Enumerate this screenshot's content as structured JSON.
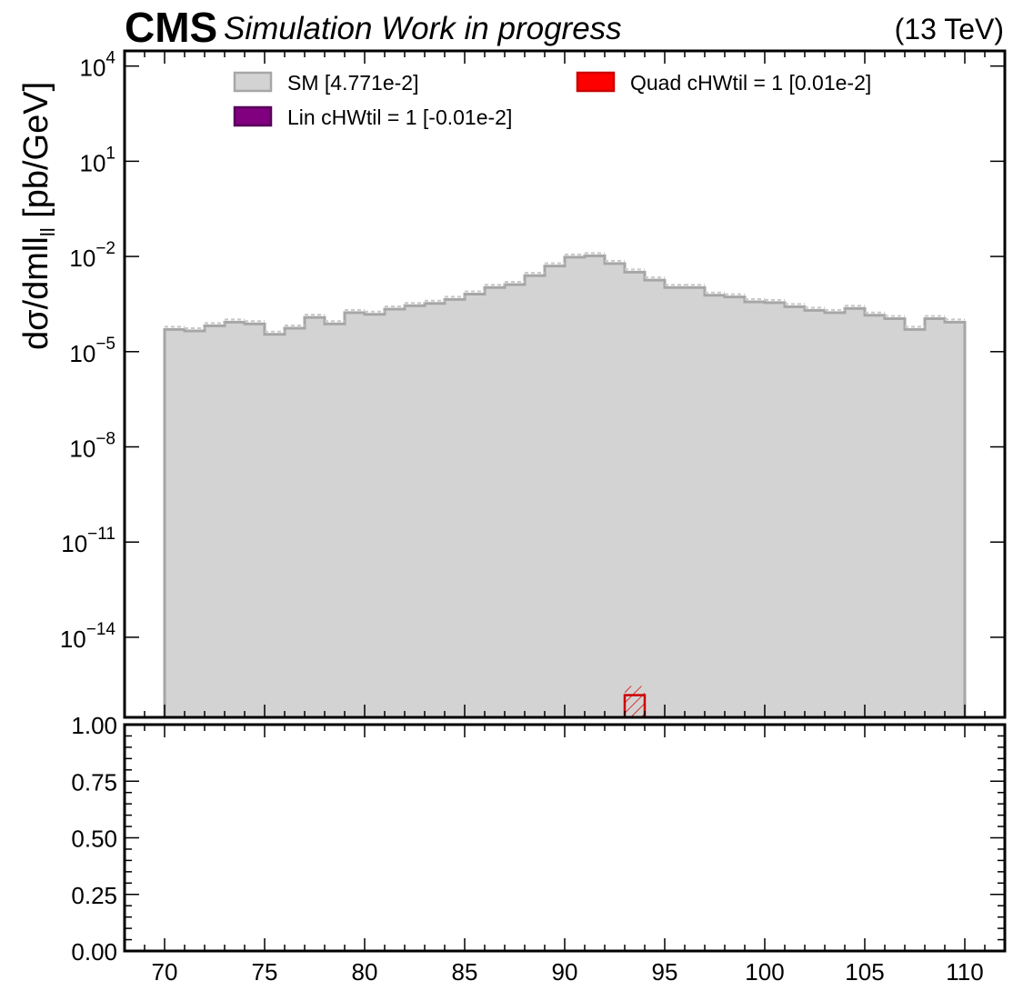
{
  "header": {
    "experiment": "CMS",
    "status": "Simulation Work in progress",
    "energy": "(13 TeV)"
  },
  "chart_data": {
    "type": "histogram",
    "main_panel": {
      "ylabel_main": "dσ/dmll",
      "ylabel_sub": "ll",
      "ylabel_tail": " [pb/GeV]",
      "yscale": "log",
      "ylim": [
        3e-17,
        30000
      ],
      "ytick_labels": [
        {
          "exp": 4,
          "label": "10",
          "sup": "4"
        },
        {
          "exp": 1,
          "label": "10",
          "sup": "1"
        },
        {
          "exp": -2,
          "label": "10",
          "sup": "−2"
        },
        {
          "exp": -5,
          "label": "10",
          "sup": "−5"
        },
        {
          "exp": -8,
          "label": "10",
          "sup": "−8"
        },
        {
          "exp": -11,
          "label": "10",
          "sup": "−11"
        },
        {
          "exp": -14,
          "label": "10",
          "sup": "−14"
        }
      ],
      "xlim": [
        68,
        112
      ],
      "bin_edges": [
        70,
        71,
        72,
        73,
        74,
        75,
        76,
        77,
        78,
        79,
        80,
        81,
        82,
        83,
        84,
        85,
        86,
        87,
        88,
        89,
        90,
        91,
        92,
        93,
        94,
        95,
        96,
        97,
        98,
        99,
        100,
        101,
        102,
        103,
        104,
        105,
        106,
        107,
        108,
        109,
        110
      ],
      "series": [
        {
          "name": "SM [4.771e-2]",
          "color": "#d3d3d3",
          "edgecolor": "#a6a6a6",
          "values": [
            5e-05,
            4.5e-05,
            6.5e-05,
            8.5e-05,
            7.5e-05,
            3.5e-05,
            5.5e-05,
            0.00012,
            7.5e-05,
            0.00017,
            0.00015,
            0.00022,
            0.00028,
            0.00033,
            0.00044,
            0.00065,
            0.00105,
            0.0013,
            0.0025,
            0.005,
            0.0095,
            0.0105,
            0.006,
            0.0032,
            0.0018,
            0.00105,
            0.00105,
            0.0006,
            0.00053,
            0.00037,
            0.00035,
            0.00026,
            0.0002,
            0.00017,
            0.00023,
            0.00014,
            0.00011,
            5e-05,
            0.00011,
            8.5e-05
          ]
        },
        {
          "name": "Lin cHWtil = 1 [-0.01e-2]",
          "color": "#800080",
          "edgecolor": "#5a005a",
          "values": []
        },
        {
          "name": "Quad cHWtil = 1 [0.01e-2]",
          "color": "#ff0000",
          "edgecolor": "#cc0000",
          "bins": [
            [
              93,
              94
            ]
          ],
          "values": [
            1.5e-16
          ]
        }
      ]
    },
    "ratio_panel": {
      "ylim": [
        0,
        1
      ],
      "ytick_labels": [
        "0.00",
        "0.25",
        "0.50",
        "0.75",
        "1.00"
      ],
      "ytick_values": [
        0,
        0.25,
        0.5,
        0.75,
        1.0
      ]
    },
    "xtick_labels": [
      "70",
      "75",
      "80",
      "85",
      "90",
      "95",
      "100",
      "105",
      "110"
    ],
    "xtick_values": [
      70,
      75,
      80,
      85,
      90,
      95,
      100,
      105,
      110
    ]
  }
}
